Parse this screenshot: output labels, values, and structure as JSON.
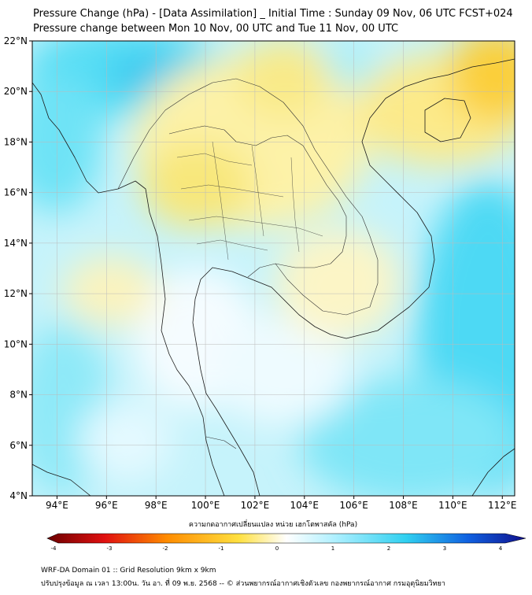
{
  "title": {
    "line1": "Pressure Change (hPa) - [Data Assimilation] _ Initial Time : Sunday 09 Nov, 06 UTC FCST+024",
    "line2": "Pressure change between Mon 10 Nov, 00 UTC and Tue 11 Nov, 00 UTC"
  },
  "axes": {
    "lat_labels": [
      "22°N",
      "20°N",
      "18°N",
      "16°N",
      "14°N",
      "12°N",
      "10°N",
      "8°N",
      "6°N",
      "4°N"
    ],
    "lon_labels": [
      "94°E",
      "96°E",
      "98°E",
      "100°E",
      "102°E",
      "104°E",
      "106°E",
      "108°E",
      "110°E",
      "112°E"
    ],
    "lat_range": [
      4,
      22
    ],
    "lon_range": [
      93,
      112.5
    ]
  },
  "colorbar": {
    "title": "ความกดอากาศเปลี่ยนแปลง หน่วย เฮกโตพาสคัล (hPa)",
    "ticks": [
      "-4",
      "-3",
      "-2",
      "-1",
      "0",
      "1",
      "2",
      "3",
      "4"
    ],
    "range": [
      -4,
      4
    ],
    "colors": {
      "min": "#6b0000",
      "neg_strong": "#e01010",
      "neg_mid": "#ff8c00",
      "neg_light": "#ffe040",
      "zero": "#ffffff",
      "pos_light": "#b0f0ff",
      "pos_mid": "#30d0f0",
      "pos_strong": "#1060e0",
      "max": "#10108c"
    }
  },
  "footer": {
    "line1": "WRF-DA Domain 01 :: Grid Resolution 9km x 9km",
    "line2": "ปรับปรุงข้อมูล ณ เวลา 13:00น. วัน อา. ที่ 09 พ.ย. 2568 -- © ส่วนพยากรณ์อากาศเชิงตัวเลข กองพยากรณ์อากาศ กรมอุตุนิยมวิทยา"
  }
}
